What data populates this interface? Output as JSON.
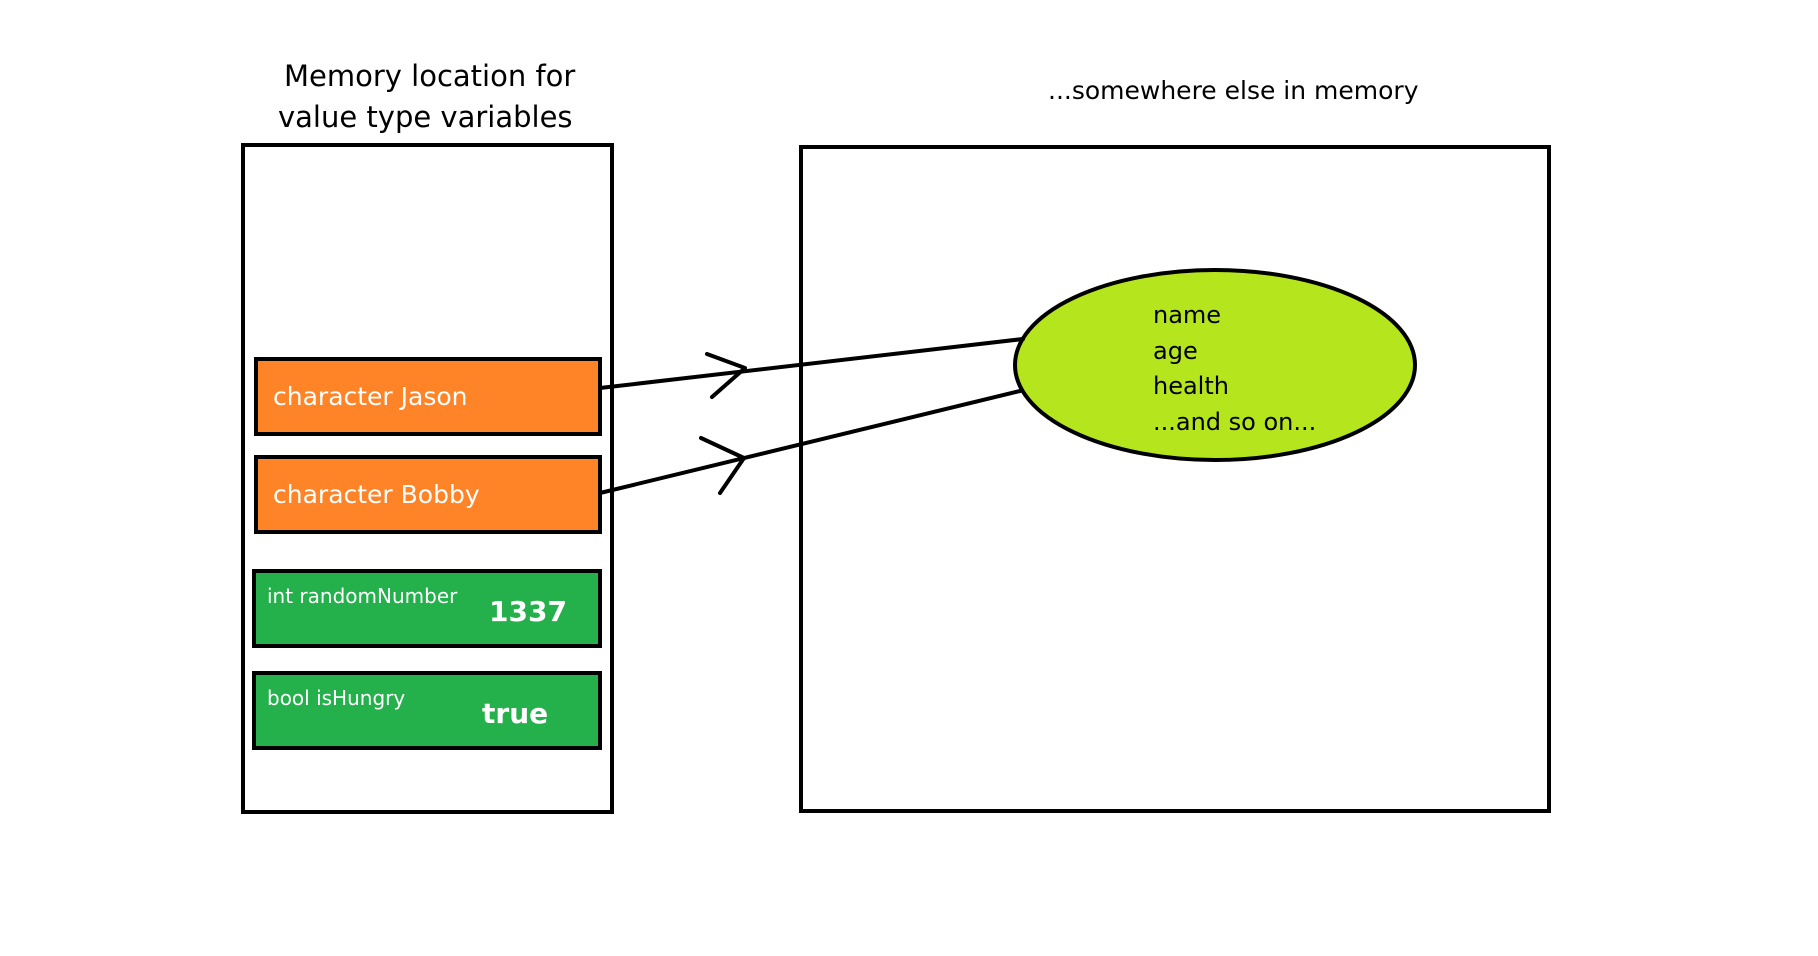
{
  "colors": {
    "reference_slot": "#ff8428",
    "value_slot": "#24b14c",
    "object": "#b5e61d",
    "outline": "#000000",
    "slot_text": "#ffffff"
  },
  "stack": {
    "title_line_1": "Memory location for",
    "title_line_2": "value type variables",
    "reference_slots": [
      {
        "label": "character  Jason"
      },
      {
        "label": "character Bobby"
      }
    ],
    "value_slots": [
      {
        "name": "int randomNumber",
        "value": "1337"
      },
      {
        "name": "bool isHungry",
        "value": "true"
      }
    ]
  },
  "heap": {
    "title": "...somewhere else in memory",
    "object_fields": [
      "name",
      "age",
      "health",
      "...and so on..."
    ]
  }
}
